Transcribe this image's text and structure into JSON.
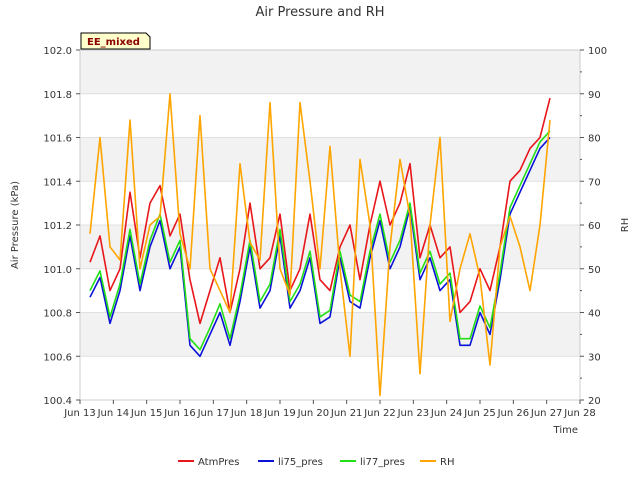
{
  "chart_data": {
    "type": "line",
    "title": "Air Pressure and RH",
    "xlabel": "Time",
    "ylabel": "Air Pressure (kPa)",
    "y2label": "RH",
    "badge": "EE_mixed",
    "xlim": [
      0,
      15
    ],
    "x_ticks": [
      {
        "x": 0,
        "label": "Jun 13"
      },
      {
        "x": 1,
        "label": "Jun 14"
      },
      {
        "x": 2,
        "label": "Jun 15"
      },
      {
        "x": 3,
        "label": "Jun 16"
      },
      {
        "x": 4,
        "label": "Jun 17"
      },
      {
        "x": 5,
        "label": "Jun 18"
      },
      {
        "x": 6,
        "label": "Jun 19"
      },
      {
        "x": 7,
        "label": "Jun 20"
      },
      {
        "x": 8,
        "label": "Jun 21"
      },
      {
        "x": 9,
        "label": "Jun 22"
      },
      {
        "x": 10,
        "label": "Jun 23"
      },
      {
        "x": 11,
        "label": "Jun 24"
      },
      {
        "x": 12,
        "label": "Jun 25"
      },
      {
        "x": 13,
        "label": "Jun 26"
      },
      {
        "x": 14,
        "label": "Jun 27"
      },
      {
        "x": 15,
        "label": "Jun 28"
      }
    ],
    "ylim": [
      100.4,
      102.0
    ],
    "y_ticks": [
      "100.4",
      "100.6",
      "100.8",
      "101.0",
      "101.2",
      "101.4",
      "101.6",
      "101.8",
      "102.0"
    ],
    "y2lim": [
      20,
      100
    ],
    "y2_ticks": [
      "20",
      "30",
      "40",
      "50",
      "60",
      "70",
      "80",
      "90",
      "100"
    ],
    "bands": [
      [
        100.6,
        100.8
      ],
      [
        101.0,
        101.2
      ],
      [
        101.4,
        101.6
      ],
      [
        101.8,
        102.0
      ]
    ],
    "legend_position": "bottom",
    "x_values": [
      0.3,
      0.6,
      0.9,
      1.2,
      1.5,
      1.8,
      2.1,
      2.4,
      2.7,
      3.0,
      3.3,
      3.6,
      3.9,
      4.2,
      4.5,
      4.8,
      5.1,
      5.4,
      5.7,
      6.0,
      6.3,
      6.6,
      6.9,
      7.2,
      7.5,
      7.8,
      8.1,
      8.4,
      8.7,
      9.0,
      9.3,
      9.6,
      9.9,
      10.2,
      10.5,
      10.8,
      11.1,
      11.4,
      11.7,
      12.0,
      12.3,
      12.6,
      12.9,
      13.2,
      13.5,
      13.8,
      14.1
    ],
    "series": [
      {
        "name": "AtmPres",
        "color": "#e8161a",
        "axis": "left",
        "values": [
          101.03,
          101.15,
          100.9,
          101.0,
          101.35,
          101.05,
          101.3,
          101.38,
          101.15,
          101.25,
          100.95,
          100.75,
          100.9,
          101.05,
          100.8,
          101.0,
          101.3,
          101.0,
          101.05,
          101.25,
          100.9,
          101.0,
          101.25,
          100.95,
          100.9,
          101.1,
          101.2,
          100.95,
          101.2,
          101.4,
          101.2,
          101.3,
          101.48,
          101.05,
          101.2,
          101.05,
          101.1,
          100.8,
          100.85,
          101.0,
          100.9,
          101.1,
          101.4,
          101.45,
          101.55,
          101.6,
          101.78
        ]
      },
      {
        "name": "li75_pres",
        "color": "#0a12d8",
        "axis": "left",
        "values": [
          100.87,
          100.96,
          100.75,
          100.9,
          101.15,
          100.9,
          101.1,
          101.22,
          101.0,
          101.1,
          100.65,
          100.6,
          100.7,
          100.8,
          100.65,
          100.85,
          101.1,
          100.82,
          100.9,
          101.15,
          100.82,
          100.9,
          101.05,
          100.75,
          100.78,
          101.05,
          100.85,
          100.82,
          101.05,
          101.22,
          101.0,
          101.1,
          101.28,
          100.95,
          101.05,
          100.9,
          100.95,
          100.65,
          100.65,
          100.8,
          100.7,
          100.95,
          101.25,
          101.35,
          101.45,
          101.55,
          101.6
        ]
      },
      {
        "name": "li77_pres",
        "color": "#22e015",
        "axis": "left",
        "values": [
          100.9,
          100.99,
          100.78,
          100.93,
          101.18,
          100.93,
          101.13,
          101.25,
          101.03,
          101.13,
          100.68,
          100.63,
          100.73,
          100.84,
          100.68,
          100.88,
          101.13,
          100.85,
          100.93,
          101.18,
          100.85,
          100.93,
          101.08,
          100.78,
          100.81,
          101.08,
          100.88,
          100.85,
          101.08,
          101.25,
          101.03,
          101.13,
          101.3,
          100.98,
          101.08,
          100.93,
          100.98,
          100.68,
          100.68,
          100.83,
          100.73,
          100.98,
          101.28,
          101.38,
          101.48,
          101.58,
          101.63
        ]
      },
      {
        "name": "RH",
        "color": "#ffa500",
        "axis": "right",
        "values": [
          58,
          80,
          55,
          52,
          84,
          50,
          60,
          62,
          90,
          58,
          50,
          85,
          50,
          45,
          40,
          74,
          56,
          52,
          88,
          50,
          44,
          88,
          70,
          50,
          78,
          50,
          30,
          75,
          60,
          21,
          55,
          75,
          62,
          26,
          60,
          80,
          38,
          50,
          58,
          48,
          28,
          55,
          62,
          55,
          45,
          60,
          84
        ]
      }
    ]
  }
}
